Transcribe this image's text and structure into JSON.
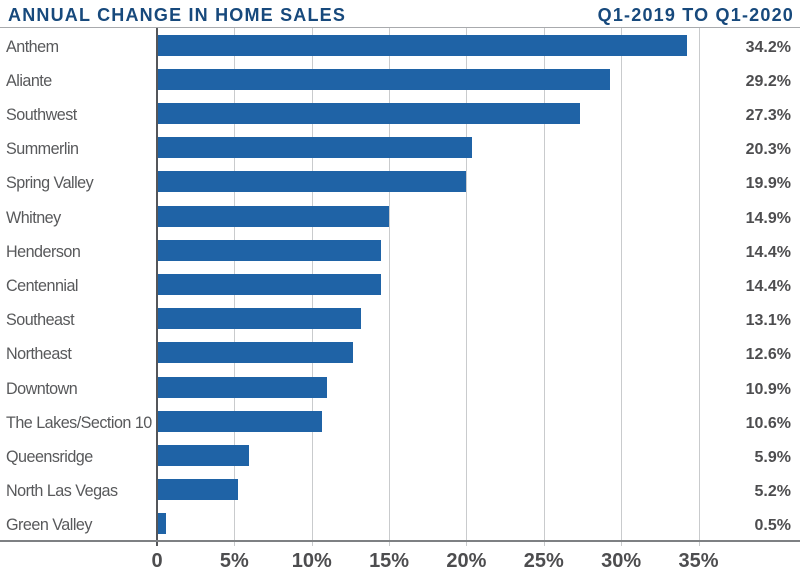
{
  "header": {
    "title": "ANNUAL CHANGE IN HOME SALES",
    "period": "Q1-2019 TO Q1-2020"
  },
  "chart_data": {
    "type": "bar",
    "orientation": "horizontal",
    "title": "ANNUAL CHANGE IN HOME SALES",
    "subtitle": "Q1-2019 TO Q1-2020",
    "categories": [
      "Anthem",
      "Aliante",
      "Southwest",
      "Summerlin",
      "Spring Valley",
      "Whitney",
      "Henderson",
      "Centennial",
      "Southeast",
      "Northeast",
      "Downtown",
      "The Lakes/Section 10",
      "Queensridge",
      "North Las Vegas",
      "Green Valley"
    ],
    "values": [
      34.2,
      29.2,
      27.3,
      20.3,
      19.9,
      14.9,
      14.4,
      14.4,
      13.1,
      12.6,
      10.9,
      10.6,
      5.9,
      5.2,
      0.5
    ],
    "value_labels": [
      "34.2%",
      "29.2%",
      "27.3%",
      "20.3%",
      "19.9%",
      "14.9%",
      "14.4%",
      "14.4%",
      "13.1%",
      "12.6%",
      "10.9%",
      "10.6%",
      "5.9%",
      "5.2%",
      "0.5%"
    ],
    "x_ticks": [
      0,
      5,
      10,
      15,
      20,
      25,
      30,
      35
    ],
    "x_tick_labels": [
      "0",
      "5%",
      "10%",
      "15%",
      "20%",
      "25%",
      "30%",
      "35%"
    ],
    "xlim": [
      0,
      35
    ],
    "grid": true,
    "xlabel": "",
    "ylabel": "",
    "bar_color": "#1F63A6",
    "title_color": "#17497C",
    "category_label_color": "#58595B",
    "value_label_color": "#4D4D4F",
    "gridline_color": "#C9CBCD",
    "axis_color": "#54565A"
  }
}
